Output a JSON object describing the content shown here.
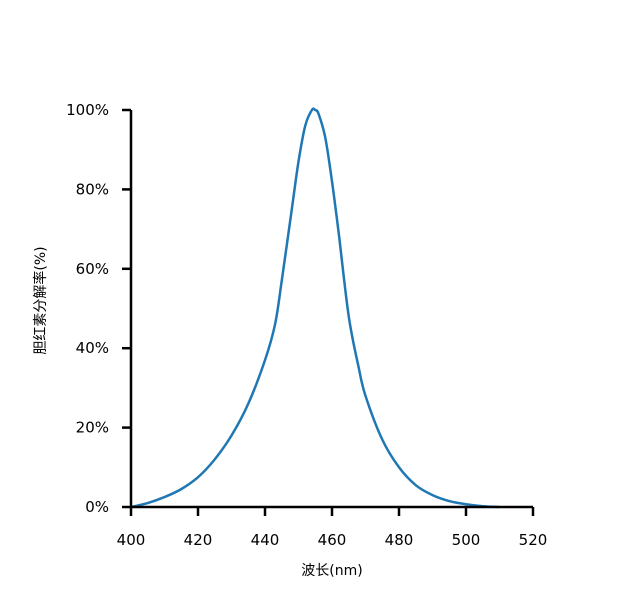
{
  "chart_data": {
    "type": "line",
    "title": "",
    "xlabel": "波长(nm)",
    "ylabel": "胆红素分解率(%)",
    "xlim": [
      400,
      520
    ],
    "ylim": [
      0,
      100
    ],
    "x_ticks": [
      "400",
      "420",
      "440",
      "460",
      "480",
      "500",
      "520"
    ],
    "y_ticks": [
      "0%",
      "20%",
      "40%",
      "60%",
      "80%",
      "100%"
    ],
    "grid": false,
    "legend": "none",
    "series": [
      {
        "color": "#1f77b4",
        "x": [
          400,
          405,
          410,
          415,
          420,
          425,
          430,
          435,
          440,
          443,
          445,
          448,
          450,
          452,
          454,
          455,
          456,
          458,
          460,
          462,
          465,
          468,
          470,
          475,
          480,
          485,
          490,
          495,
          500,
          505,
          510
        ],
        "y": [
          0,
          1,
          2.5,
          4.5,
          7.5,
          12,
          18,
          26,
          37,
          46,
          57,
          75,
          87,
          96,
          100,
          100,
          99,
          93,
          82,
          69,
          48,
          35,
          28,
          17,
          10,
          5.5,
          3,
          1.5,
          0.7,
          0.2,
          0
        ]
      }
    ]
  }
}
